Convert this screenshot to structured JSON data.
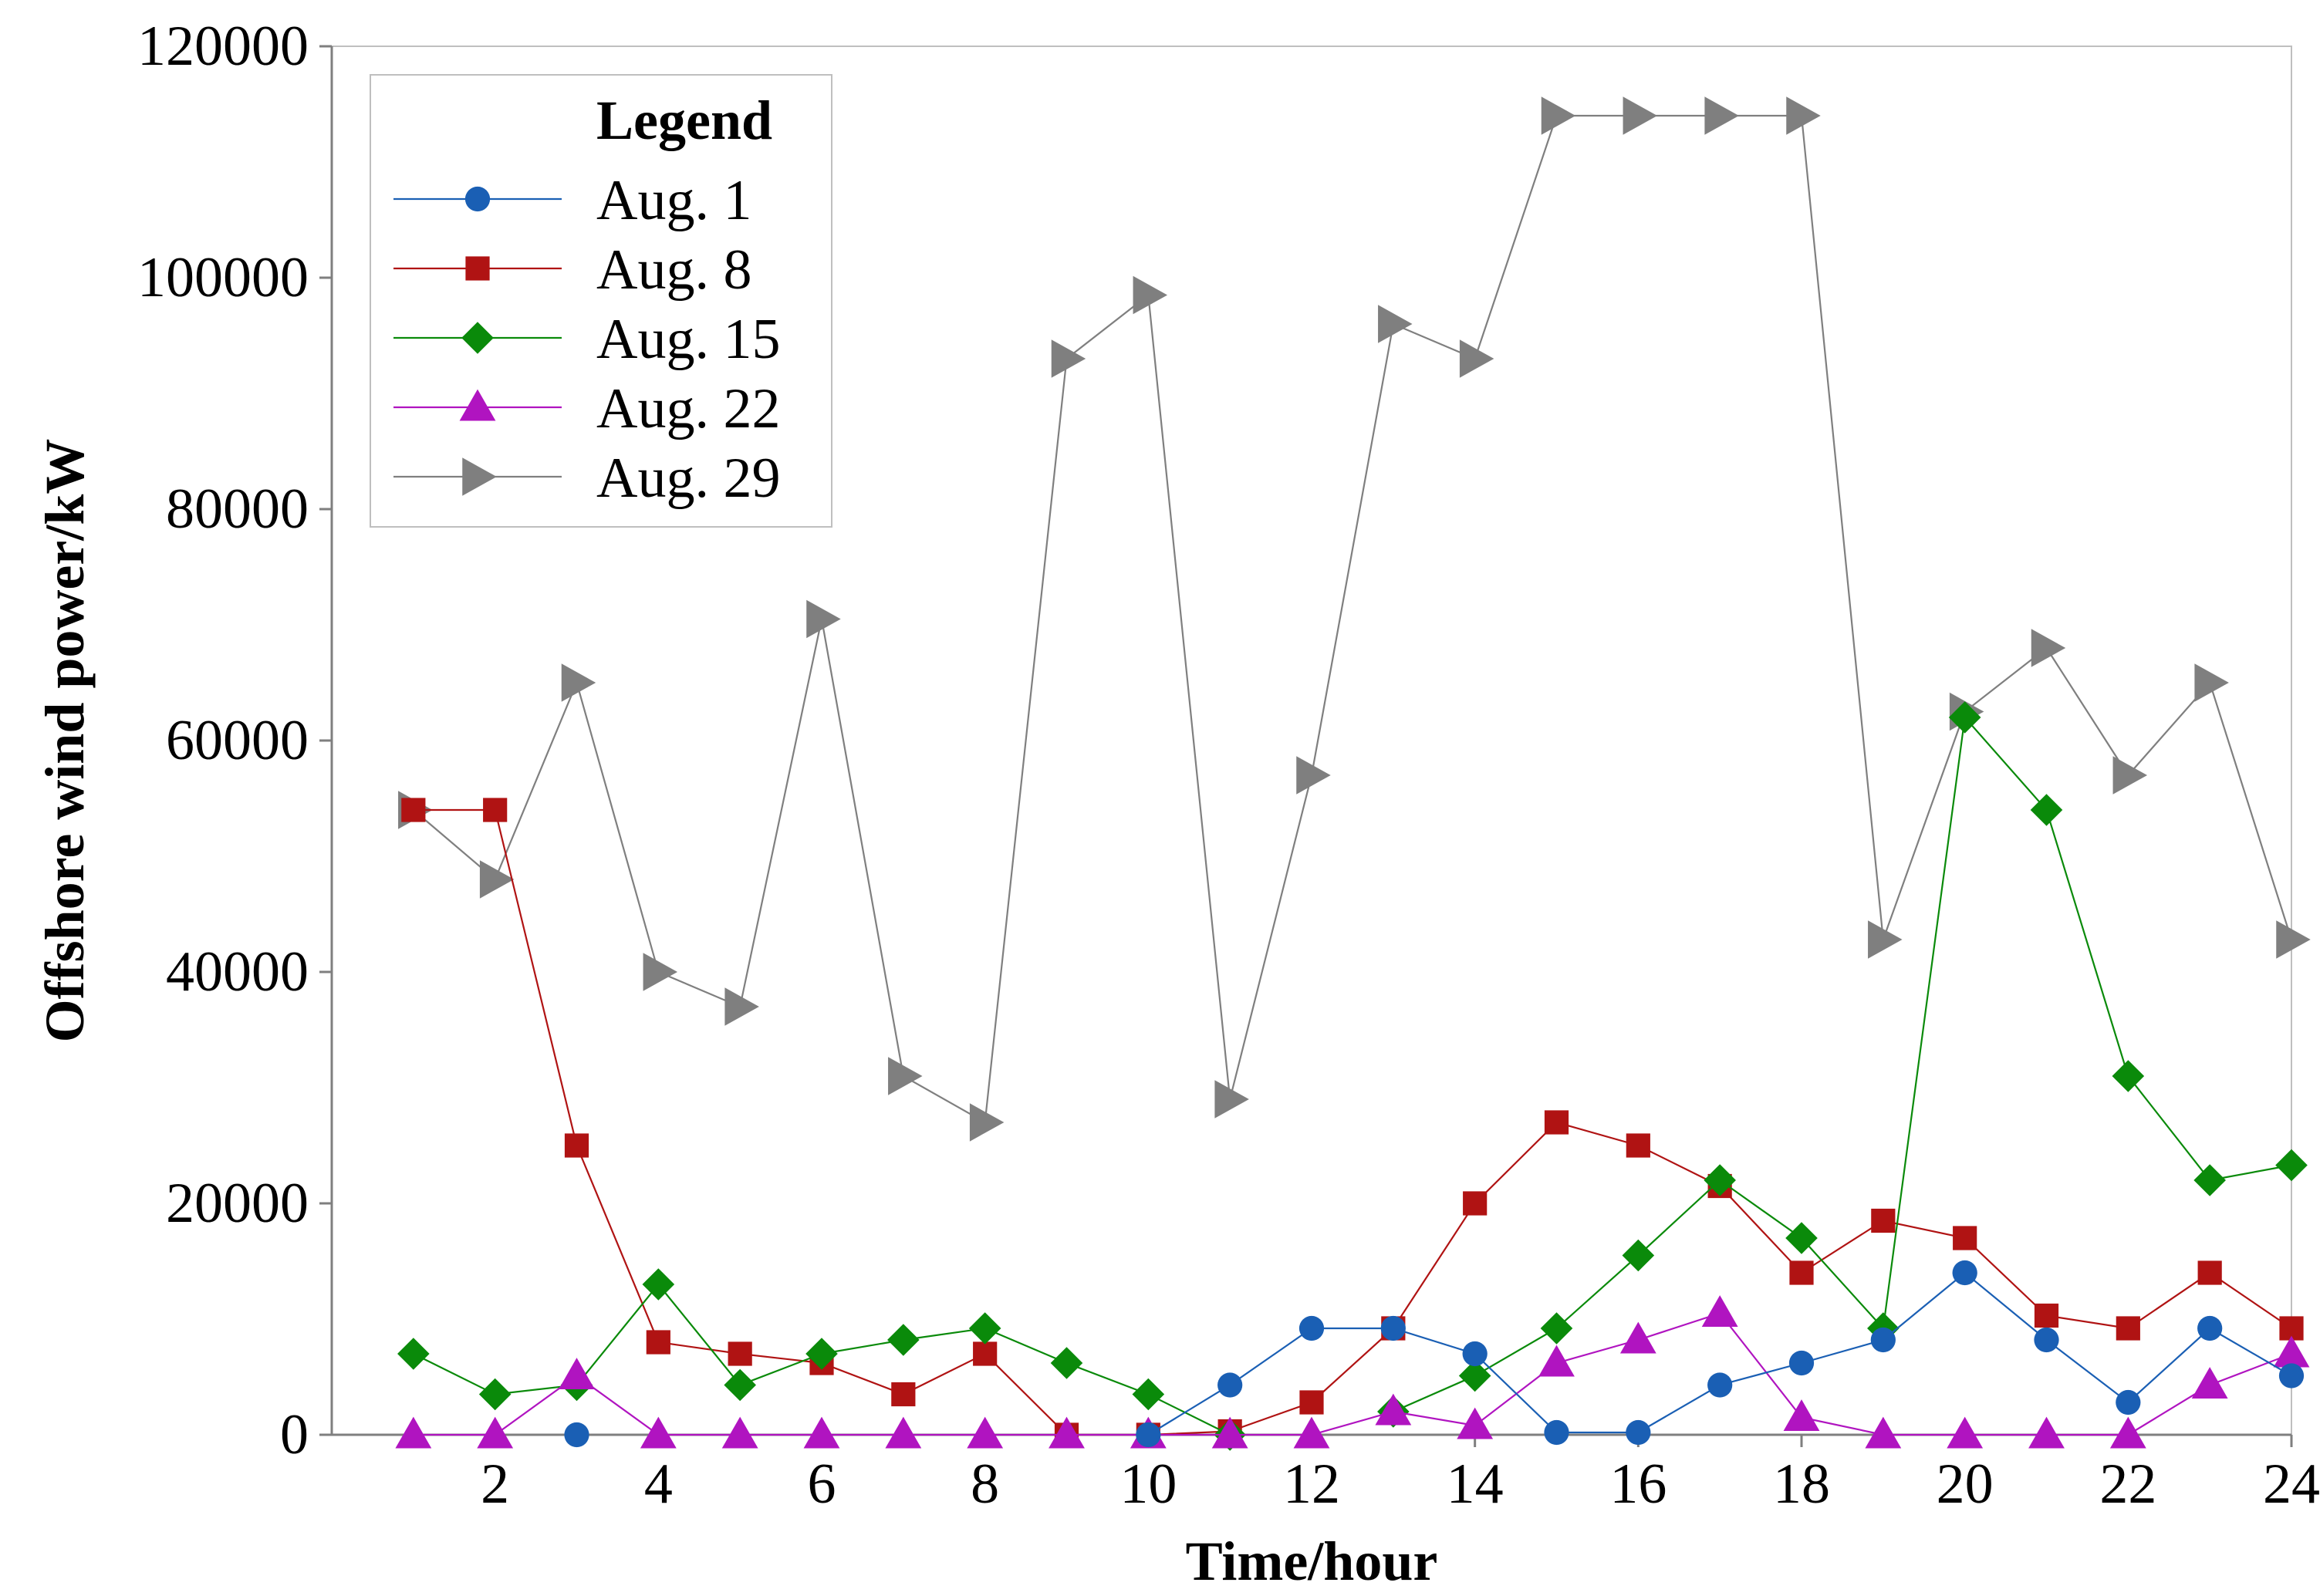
{
  "chart_data": {
    "type": "line",
    "title": "",
    "xlabel": "Time/hour",
    "ylabel": "Offshore wind power/kW",
    "xlim": [
      0,
      24
    ],
    "ylim": [
      0,
      120000
    ],
    "x_ticks": [
      2,
      4,
      6,
      8,
      10,
      12,
      14,
      16,
      18,
      20,
      22,
      24
    ],
    "y_ticks": [
      0,
      20000,
      40000,
      60000,
      80000,
      100000,
      120000
    ],
    "x_tick_labels": [
      "2",
      "4",
      "6",
      "8",
      "10",
      "12",
      "14",
      "16",
      "18",
      "20",
      "22",
      "24"
    ],
    "y_tick_labels": [
      "0",
      "20000",
      "40000",
      "60000",
      "80000",
      "100000",
      "120000"
    ],
    "grid": false,
    "legend_title": "Legend",
    "legend_position": "top-left",
    "x": [
      1,
      2,
      3,
      4,
      5,
      6,
      7,
      8,
      9,
      10,
      11,
      12,
      13,
      14,
      15,
      16,
      17,
      18,
      19,
      20,
      21,
      22,
      23,
      24
    ],
    "series": [
      {
        "name": "Aug. 1",
        "color": "#1a5fb4",
        "marker": "circle",
        "values": [
          null,
          null,
          0,
          null,
          null,
          null,
          null,
          null,
          null,
          0,
          4300,
          9200,
          9200,
          7000,
          200,
          200,
          4300,
          6200,
          8200,
          14000,
          8200,
          2800,
          9200,
          5100
        ]
      },
      {
        "name": "Aug. 8",
        "color": "#b01313",
        "marker": "square",
        "values": [
          54000,
          54000,
          25000,
          8000,
          7000,
          6200,
          3500,
          7000,
          0,
          0,
          300,
          2800,
          9200,
          20000,
          27000,
          25000,
          21500,
          14000,
          18500,
          17000,
          10300,
          9200,
          14000,
          9200
        ]
      },
      {
        "name": "Aug. 15",
        "color": "#0a8a0a",
        "marker": "diamond",
        "values": [
          7000,
          3500,
          4300,
          13000,
          4300,
          7000,
          8200,
          9200,
          6200,
          3500,
          0,
          null,
          2000,
          5100,
          9200,
          15500,
          22000,
          17000,
          9200,
          62000,
          54000,
          31000,
          22000,
          23300
        ]
      },
      {
        "name": "Aug. 22",
        "color": "#b014c0",
        "marker": "triangle",
        "values": [
          0,
          0,
          5100,
          0,
          0,
          0,
          0,
          0,
          0,
          0,
          0,
          0,
          2000,
          800,
          6200,
          8200,
          10500,
          1500,
          0,
          0,
          0,
          0,
          4300,
          7000
        ]
      },
      {
        "name": "Aug. 29",
        "color": "#7f7f7f",
        "marker": "triangle-right",
        "values": [
          54000,
          48000,
          65000,
          40000,
          37000,
          70500,
          31000,
          27000,
          93000,
          98500,
          29000,
          57000,
          96000,
          93000,
          114000,
          114000,
          114000,
          114000,
          42800,
          62500,
          68000,
          57000,
          65000,
          42800
        ]
      }
    ]
  }
}
